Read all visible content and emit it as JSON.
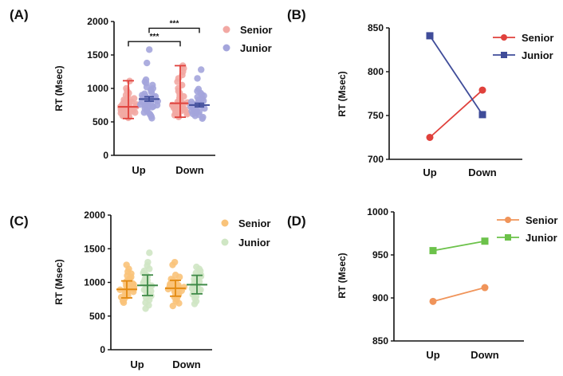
{
  "chart_data": [
    {
      "id": "A",
      "panel_label": "(A)",
      "type": "scatter",
      "subtype": "dot-plot-with-error-bars",
      "ylabel": "RT (Msec)",
      "xlabel": "",
      "ylim": [
        0,
        2000
      ],
      "yticks": [
        0,
        500,
        1000,
        1500,
        2000
      ],
      "ytick_labels": [
        "0",
        "500",
        "1000",
        "1500",
        "2000"
      ],
      "categories": [
        "Up",
        "Down"
      ],
      "legend": "top-right",
      "series": [
        {
          "name": "Senior",
          "point_color": "#f2a8a3",
          "bar_color": "#e0413c",
          "error_bar": "range",
          "values": {
            "Up": {
              "center": 725,
              "low": 550,
              "high": 1115
            },
            "Down": {
              "center": 779,
              "low": 570,
              "high": 1340
            }
          },
          "points": {
            "Up": [
              560,
              575,
              590,
              600,
              610,
              620,
              630,
              640,
              650,
              655,
              660,
              670,
              675,
              680,
              690,
              695,
              700,
              705,
              710,
              715,
              720,
              725,
              730,
              740,
              745,
              750,
              760,
              770,
              780,
              790,
              800,
              810,
              830,
              850,
              870,
              900,
              930,
              960,
              1000,
              1110
            ],
            "Down": [
              575,
              590,
              600,
              615,
              630,
              640,
              650,
              660,
              670,
              680,
              690,
              700,
              710,
              720,
              730,
              740,
              750,
              760,
              770,
              780,
              790,
              800,
              820,
              840,
              860,
              880,
              900,
              930,
              960,
              1000,
              1050,
              1100,
              1150,
              1200,
              1250,
              1300,
              1340
            ]
          }
        },
        {
          "name": "Junior",
          "point_color": "#a4a5dc",
          "bar_color": "#3f4c99",
          "error_bar": "sem",
          "values": {
            "Up": {
              "center": 841,
              "low": 810,
              "high": 875
            },
            "Down": {
              "center": 751,
              "low": 725,
              "high": 778
            }
          },
          "points": {
            "Up": [
              555,
              580,
              600,
              620,
              640,
              660,
              680,
              700,
              710,
              720,
              730,
              740,
              750,
              760,
              770,
              780,
              790,
              800,
              810,
              820,
              830,
              840,
              850,
              860,
              870,
              880,
              890,
              900,
              920,
              940,
              960,
              980,
              1000,
              1020,
              1050,
              1080,
              1100,
              1130,
              1380,
              1580
            ],
            "Down": [
              550,
              570,
              590,
              605,
              620,
              635,
              650,
              660,
              670,
              680,
              690,
              700,
              710,
              720,
              730,
              740,
              750,
              760,
              770,
              780,
              790,
              800,
              815,
              830,
              850,
              870,
              890,
              910,
              930,
              960,
              990,
              1150,
              1280
            ]
          }
        }
      ],
      "annotations": [
        {
          "type": "significance",
          "text": "***",
          "from": "Up/Senior",
          "to": "Down/Senior",
          "level": 1700
        },
        {
          "type": "significance",
          "text": "***",
          "from": "Up/Junior",
          "to": "Down/Junior",
          "level": 1900
        }
      ]
    },
    {
      "id": "B",
      "panel_label": "(B)",
      "type": "line",
      "ylabel": "RT (Msec)",
      "xlabel": "",
      "ylim": [
        700,
        850
      ],
      "yticks": [
        700,
        750,
        800,
        850
      ],
      "ytick_labels": [
        "700",
        "750",
        "800",
        "850"
      ],
      "categories": [
        "Up",
        "Down"
      ],
      "legend": "top-right",
      "series": [
        {
          "name": "Senior",
          "marker": "circle",
          "color": "#e0413c",
          "values": [
            725,
            779
          ]
        },
        {
          "name": "Junior",
          "marker": "square",
          "color": "#3f4c99",
          "values": [
            841,
            751
          ]
        }
      ]
    },
    {
      "id": "C",
      "panel_label": "(C)",
      "type": "scatter",
      "subtype": "dot-plot-with-error-bars",
      "ylabel": "RT (Msec)",
      "xlabel": "",
      "ylim": [
        0,
        2000
      ],
      "yticks": [
        0,
        500,
        1000,
        1500,
        2000
      ],
      "ytick_labels": [
        "0",
        "500",
        "1000",
        "1500",
        "2000"
      ],
      "categories": [
        "Up",
        "Down"
      ],
      "legend": "top-right",
      "series": [
        {
          "name": "Senior",
          "point_color": "#f9c37a",
          "bar_color": "#e38a12",
          "error_bar": "sd",
          "values": {
            "Up": {
              "center": 896,
              "low": 770,
              "high": 1022
            },
            "Down": {
              "center": 912,
              "low": 795,
              "high": 1030
            }
          },
          "points": {
            "Up": [
              700,
              720,
              740,
              760,
              780,
              800,
              815,
              830,
              845,
              860,
              870,
              880,
              890,
              900,
              910,
              920,
              930,
              940,
              955,
              970,
              985,
              1000,
              1020,
              1040,
              1060,
              1080,
              1100,
              1130,
              1160,
              1200,
              1260
            ],
            "Down": [
              650,
              690,
              720,
              750,
              780,
              800,
              820,
              840,
              860,
              875,
              890,
              900,
              910,
              920,
              930,
              940,
              950,
              960,
              975,
              990,
              1010,
              1030,
              1050,
              1080,
              1110,
              1260,
              1300
            ]
          }
        },
        {
          "name": "Junior",
          "point_color": "#cfe6c4",
          "bar_color": "#3f8a48",
          "error_bar": "sd",
          "values": {
            "Up": {
              "center": 955,
              "low": 805,
              "high": 1110
            },
            "Down": {
              "center": 966,
              "low": 830,
              "high": 1105
            }
          },
          "points": {
            "Up": [
              610,
              660,
              700,
              740,
              770,
              800,
              830,
              850,
              870,
              890,
              910,
              930,
              950,
              970,
              990,
              1010,
              1030,
              1050,
              1070,
              1090,
              1110,
              1140,
              1170,
              1200,
              1250,
              1300,
              1440
            ],
            "Down": [
              680,
              720,
              760,
              790,
              820,
              850,
              870,
              890,
              910,
              930,
              950,
              970,
              990,
              1010,
              1030,
              1050,
              1070,
              1090,
              1110,
              1140,
              1170,
              1200,
              1230
            ]
          }
        }
      ]
    },
    {
      "id": "D",
      "panel_label": "(D)",
      "type": "line",
      "ylabel": "RT (Msec)",
      "xlabel": "",
      "ylim": [
        850,
        1000
      ],
      "yticks": [
        850,
        900,
        950,
        1000
      ],
      "ytick_labels": [
        "850",
        "900",
        "950",
        "1000"
      ],
      "categories": [
        "Up",
        "Down"
      ],
      "legend": "top-right",
      "series": [
        {
          "name": "Senior",
          "marker": "circle",
          "color": "#f0945a",
          "values": [
            896,
            912
          ]
        },
        {
          "name": "Junior",
          "marker": "square",
          "color": "#6cc24a",
          "values": [
            955,
            966
          ]
        }
      ]
    }
  ]
}
